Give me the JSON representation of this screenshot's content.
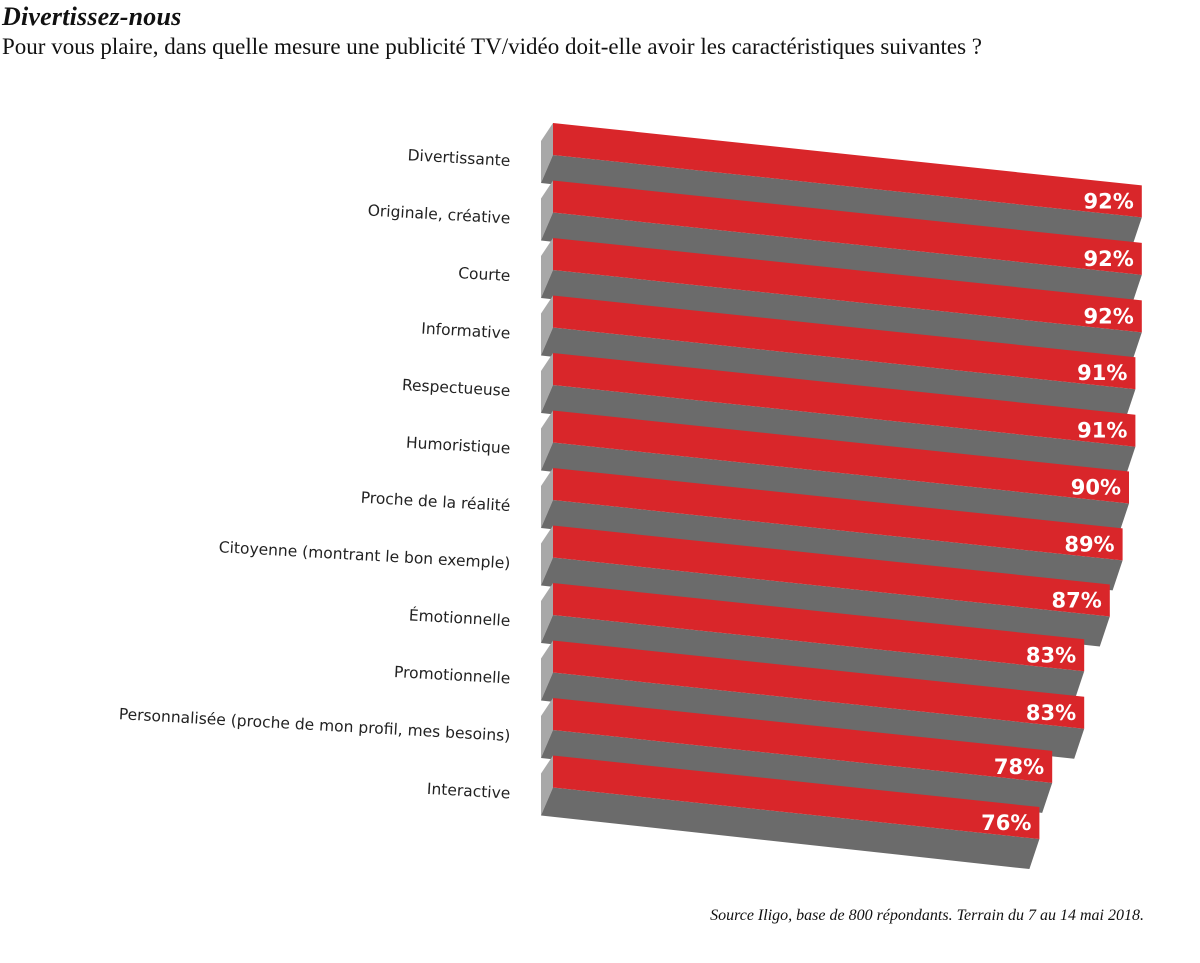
{
  "header": {
    "title": "Divertissez-nous",
    "subtitle": "Pour vous plaire, dans quelle mesure une publicité TV/vidéo doit-elle avoir les caractéristiques suivantes ?"
  },
  "footer": {
    "source": "Source Iligo, base de 800 répondants. Terrain du 7 au 14 mai 2018."
  },
  "colors": {
    "bar_top": "#d9262a",
    "bar_side": "#6b6b6b",
    "bar_end": "#a8a8a8",
    "value_text": "#ffffff",
    "category_text": "#222222"
  },
  "chart_data": {
    "type": "bar",
    "orientation": "horizontal",
    "style": "3d-skewed",
    "unit": "%",
    "categories": [
      "Divertissante",
      "Originale, créative",
      "Courte",
      "Informative",
      "Respectueuse",
      "Humoristique",
      "Proche de la réalité",
      "Citoyenne (montrant le bon exemple)",
      "Émotionnelle",
      "Promotionnelle",
      "Personnalisée (proche de mon profil, mes besoins)",
      "Interactive"
    ],
    "values": [
      92,
      92,
      92,
      91,
      91,
      90,
      89,
      87,
      83,
      83,
      78,
      76
    ],
    "labels": [
      "92%",
      "92%",
      "92%",
      "91%",
      "91%",
      "90%",
      "89%",
      "87%",
      "83%",
      "83%",
      "78%",
      "76%"
    ]
  }
}
